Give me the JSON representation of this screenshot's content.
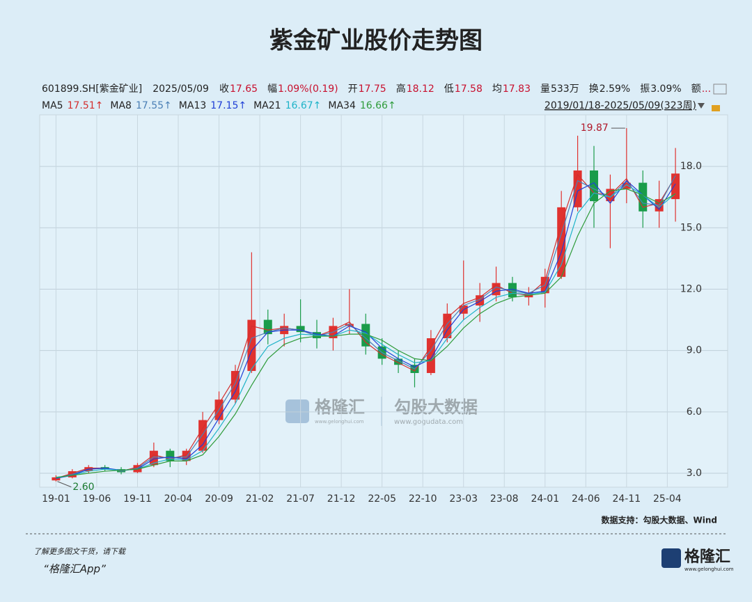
{
  "title": "紫金矿业股价走势图",
  "header": {
    "quote": [
      {
        "label": "601899.SH[紫金矿业]",
        "color": "#222222"
      },
      {
        "label": "2025/05/09",
        "color": "#222222"
      },
      {
        "label": "收",
        "value": "17.65",
        "color": "#c8102e"
      },
      {
        "label": "幅",
        "value": "1.09%(0.19)",
        "color": "#c8102e"
      },
      {
        "label": "开",
        "value": "17.75",
        "color": "#c8102e"
      },
      {
        "label": "高",
        "value": "18.12",
        "color": "#c8102e"
      },
      {
        "label": "低",
        "value": "17.58",
        "color": "#c8102e"
      },
      {
        "label": "均",
        "value": "17.83",
        "color": "#c8102e"
      },
      {
        "label": "量",
        "value": "533万",
        "color": "#222222"
      },
      {
        "label": "换",
        "value": "2.59%",
        "color": "#222222"
      },
      {
        "label": "振",
        "value": "3.09%",
        "color": "#222222"
      },
      {
        "label": "额",
        "value": "...",
        "color": "#c8102e"
      }
    ],
    "range": "2019/01/18-2025/05/09(323周)"
  },
  "chart_data": {
    "type": "candlestick",
    "x": [
      0,
      2,
      4,
      6,
      8,
      10,
      12,
      14,
      16,
      18,
      20,
      22,
      24,
      26,
      28,
      30,
      32,
      34,
      36,
      38,
      40,
      42,
      44,
      46,
      48,
      50,
      52,
      54,
      56,
      58,
      60,
      62,
      64,
      66,
      68,
      70,
      72,
      74,
      76
    ],
    "open": [
      2.65,
      2.8,
      3.1,
      3.3,
      3.2,
      3.05,
      3.4,
      4.1,
      3.6,
      4.1,
      5.6,
      6.6,
      8.0,
      10.5,
      9.8,
      10.2,
      9.9,
      9.6,
      10.2,
      10.3,
      9.2,
      8.6,
      8.3,
      7.9,
      9.6,
      10.8,
      11.2,
      11.7,
      12.3,
      11.6,
      11.8,
      12.6,
      16.0,
      17.8,
      16.3,
      16.9,
      17.2,
      15.8,
      16.4
    ],
    "high": [
      2.9,
      3.2,
      3.4,
      3.4,
      3.3,
      3.5,
      4.5,
      4.2,
      4.2,
      6.0,
      7.0,
      8.3,
      13.8,
      11.0,
      10.8,
      11.5,
      10.5,
      10.6,
      12.0,
      10.8,
      9.6,
      9.0,
      8.6,
      10.0,
      11.3,
      13.4,
      12.3,
      13.1,
      12.6,
      12.1,
      13.0,
      16.8,
      19.5,
      19.0,
      17.6,
      19.87,
      17.8,
      17.3,
      18.9
    ],
    "low": [
      2.6,
      2.75,
      3.0,
      3.1,
      2.95,
      3.0,
      3.3,
      3.3,
      3.4,
      4.0,
      5.4,
      6.4,
      7.9,
      9.3,
      9.2,
      9.4,
      9.1,
      9.0,
      9.8,
      8.8,
      8.3,
      7.9,
      7.2,
      7.8,
      9.4,
      10.5,
      10.4,
      11.4,
      11.4,
      11.2,
      11.1,
      12.5,
      15.8,
      15.0,
      14.0,
      16.2,
      15.0,
      15.0,
      15.3
    ],
    "close": [
      2.8,
      3.1,
      3.3,
      3.2,
      3.05,
      3.4,
      4.1,
      3.6,
      4.1,
      5.6,
      6.6,
      8.0,
      10.5,
      9.8,
      10.2,
      9.9,
      9.6,
      10.2,
      10.3,
      9.2,
      8.6,
      8.3,
      7.9,
      9.6,
      10.8,
      11.2,
      11.7,
      12.3,
      11.6,
      11.8,
      12.6,
      16.0,
      17.8,
      16.3,
      16.9,
      17.2,
      15.8,
      16.4,
      17.65
    ],
    "up_color": "#e0322f",
    "down_color": "#1a9c4a",
    "series": [
      {
        "name": "MA5",
        "last": "17.51↑",
        "color": "#d32f2f",
        "values": [
          2.75,
          3.0,
          3.25,
          3.25,
          3.1,
          3.3,
          3.9,
          3.7,
          3.9,
          5.2,
          6.4,
          7.7,
          10.2,
          10.0,
          10.1,
          10.0,
          9.7,
          10.0,
          10.4,
          9.4,
          8.8,
          8.4,
          8.0,
          9.2,
          10.6,
          11.3,
          11.6,
          12.2,
          11.8,
          11.7,
          12.4,
          15.2,
          17.6,
          16.7,
          16.6,
          17.4,
          16.0,
          16.2,
          17.51
        ]
      },
      {
        "name": "MA8",
        "last": "17.55↑",
        "color": "#4a7fb5",
        "values": [
          2.75,
          2.95,
          3.2,
          3.25,
          3.1,
          3.25,
          3.8,
          3.75,
          3.8,
          4.9,
          6.1,
          7.4,
          9.6,
          9.9,
          10.1,
          10.0,
          9.7,
          9.9,
          10.3,
          9.6,
          8.9,
          8.5,
          8.1,
          9.0,
          10.3,
          11.2,
          11.5,
          12.1,
          11.9,
          11.8,
          12.2,
          14.7,
          17.3,
          16.9,
          16.5,
          17.3,
          16.2,
          16.1,
          17.55
        ]
      },
      {
        "name": "MA13",
        "last": "17.15↑",
        "color": "#1f3fd6",
        "values": [
          2.75,
          2.9,
          3.2,
          3.25,
          3.15,
          3.2,
          3.7,
          3.8,
          3.7,
          4.4,
          5.7,
          7.0,
          9.0,
          9.9,
          10.0,
          10.0,
          9.8,
          9.7,
          10.2,
          9.9,
          9.1,
          8.6,
          8.2,
          8.6,
          10.0,
          11.0,
          11.4,
          11.9,
          12.0,
          11.8,
          11.9,
          13.8,
          16.8,
          17.2,
          16.2,
          17.3,
          16.6,
          15.9,
          17.15
        ]
      },
      {
        "name": "MA21",
        "last": "16.67↑",
        "color": "#1fb3c8",
        "values": [
          2.78,
          2.9,
          3.1,
          3.2,
          3.15,
          3.2,
          3.5,
          3.7,
          3.65,
          4.1,
          5.2,
          6.4,
          8.1,
          9.2,
          9.6,
          9.8,
          9.75,
          9.7,
          10.0,
          9.85,
          9.3,
          8.8,
          8.4,
          8.5,
          9.6,
          10.5,
          11.1,
          11.6,
          11.8,
          11.75,
          11.85,
          13.2,
          15.7,
          16.7,
          16.5,
          17.1,
          16.6,
          16.0,
          16.67
        ]
      },
      {
        "name": "MA34",
        "last": "16.66↑",
        "color": "#2e9b3a",
        "values": [
          2.8,
          2.9,
          3.0,
          3.1,
          3.15,
          3.2,
          3.4,
          3.6,
          3.6,
          3.9,
          4.8,
          5.9,
          7.3,
          8.6,
          9.3,
          9.6,
          9.7,
          9.7,
          9.8,
          9.8,
          9.5,
          9.0,
          8.6,
          8.5,
          9.2,
          10.1,
          10.8,
          11.3,
          11.6,
          11.7,
          11.8,
          12.6,
          14.6,
          16.2,
          16.8,
          16.9,
          16.6,
          16.2,
          16.66
        ]
      }
    ],
    "max_label": "19.87",
    "min_label": "2.60",
    "xlim": [
      -2,
      82.4
    ],
    "xticks": [
      {
        "value": 0,
        "label": "19-01"
      },
      {
        "value": 5,
        "label": "19-06"
      },
      {
        "value": 10,
        "label": "19-11"
      },
      {
        "value": 15,
        "label": "20-04"
      },
      {
        "value": 20,
        "label": "20-09"
      },
      {
        "value": 25,
        "label": "21-02"
      },
      {
        "value": 30,
        "label": "21-07"
      },
      {
        "value": 35,
        "label": "21-12"
      },
      {
        "value": 40,
        "label": "22-05"
      },
      {
        "value": 45,
        "label": "22-10"
      },
      {
        "value": 50,
        "label": "23-03"
      },
      {
        "value": 55,
        "label": "23-08"
      },
      {
        "value": 60,
        "label": "24-01"
      },
      {
        "value": 65,
        "label": "24-06"
      },
      {
        "value": 70,
        "label": "24-11"
      },
      {
        "value": 75,
        "label": "25-04"
      }
    ],
    "ylim": [
      2.32,
      20.52
    ],
    "yticks": [
      {
        "value": 3,
        "label": "3.0"
      },
      {
        "value": 6,
        "label": "6.0"
      },
      {
        "value": 9,
        "label": "9.0"
      },
      {
        "value": 12,
        "label": "12.0"
      },
      {
        "value": 15,
        "label": "15.0"
      },
      {
        "value": 18,
        "label": "18.0"
      }
    ],
    "grid": true
  },
  "watermark": {
    "brand": "格隆汇",
    "brand_url": "www.gelonghui.com",
    "data_brand": "勾股大数据",
    "data_url": "www.gogudata.com"
  },
  "footer": {
    "source": "数据支持：勾股大数据、Wind",
    "promo": "了解更多图文干货，请下载",
    "app": "“格隆汇App”",
    "logo": "格隆汇",
    "logo_url": "www.gelonghui.com"
  }
}
